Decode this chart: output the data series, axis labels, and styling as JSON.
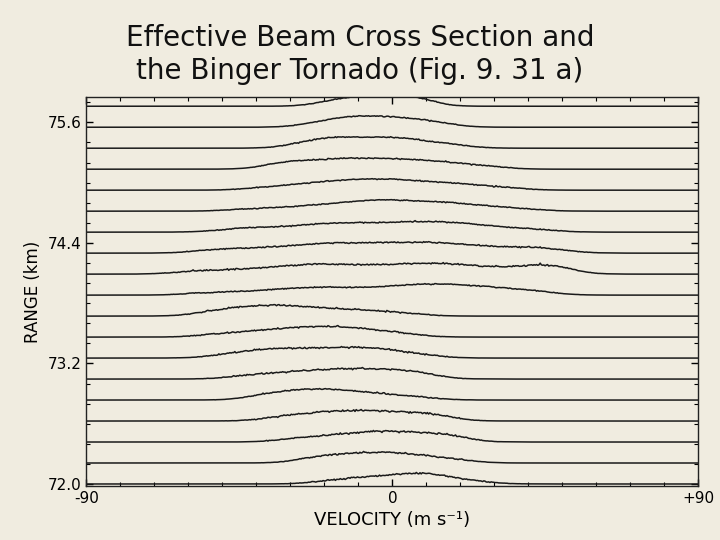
{
  "title_line1": "Effective Beam Cross Section and",
  "title_line2": "the Binger Tornado (Fig. 9. 31 a)",
  "title_fontsize": 20,
  "title_color": "#111111",
  "bg_color": "#f0ece0",
  "plot_bg_color": "#f0ece0",
  "xlabel": "VELOCITY (m s⁻¹)",
  "ylabel": "RANGE (km)",
  "xlabel_fontsize": 13,
  "ylabel_fontsize": 12,
  "xmin": -90,
  "xmax": 90,
  "ymin": 72.0,
  "ymax": 75.85,
  "ytick_labels": [
    "72.0",
    "73.2",
    "74.4",
    "75.6"
  ],
  "ytick_positions": [
    72.0,
    73.2,
    74.4,
    75.6
  ],
  "xtick_labels": [
    "-90",
    "0",
    "+90"
  ],
  "xtick_positions": [
    -90,
    0,
    90
  ],
  "line_color": "#1a1a1a",
  "line_width": 1.1,
  "n_traces": 19,
  "range_start": 72.0,
  "range_end": 75.76,
  "noise_seed": 7
}
